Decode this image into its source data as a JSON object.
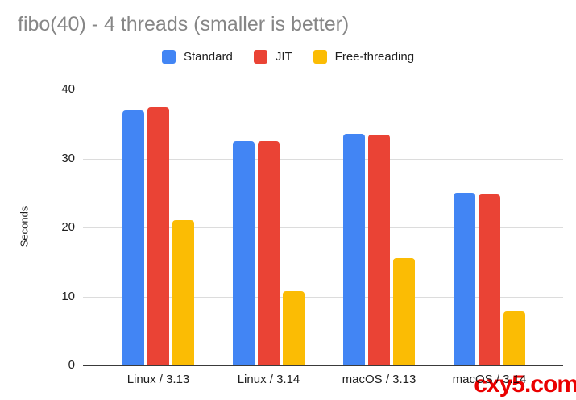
{
  "title": "fibo(40) - 4 threads (smaller is better)",
  "watermark": "cxy5.com",
  "colors": {
    "standard": "#4285F4",
    "jit": "#EA4335",
    "free_threading": "#FBBC04",
    "title_text": "#868686",
    "axis_text": "#1f1f1f",
    "gridline": "#dcdcdc",
    "baseline": "#3a3a3a",
    "watermark": "#ea0000"
  },
  "chart_data": {
    "type": "bar",
    "title": "fibo(40) - 4 threads (smaller is better)",
    "categories": [
      "Linux / 3.13",
      "Linux / 3.14",
      "macOS / 3.13",
      "macOS / 3.14"
    ],
    "series": [
      {
        "name": "Standard",
        "color": "#4285F4",
        "values": [
          37.0,
          32.5,
          33.6,
          25.0
        ]
      },
      {
        "name": "JIT",
        "color": "#EA4335",
        "values": [
          37.4,
          32.5,
          33.4,
          24.8
        ]
      },
      {
        "name": "Free-threading",
        "color": "#FBBC04",
        "values": [
          21.1,
          10.8,
          15.6,
          7.8
        ]
      }
    ],
    "xlabel": "",
    "ylabel": "Seconds",
    "ylim": [
      0,
      40
    ],
    "yticks": [
      0,
      10,
      20,
      30,
      40
    ],
    "grid": true,
    "legend_position": "top"
  }
}
